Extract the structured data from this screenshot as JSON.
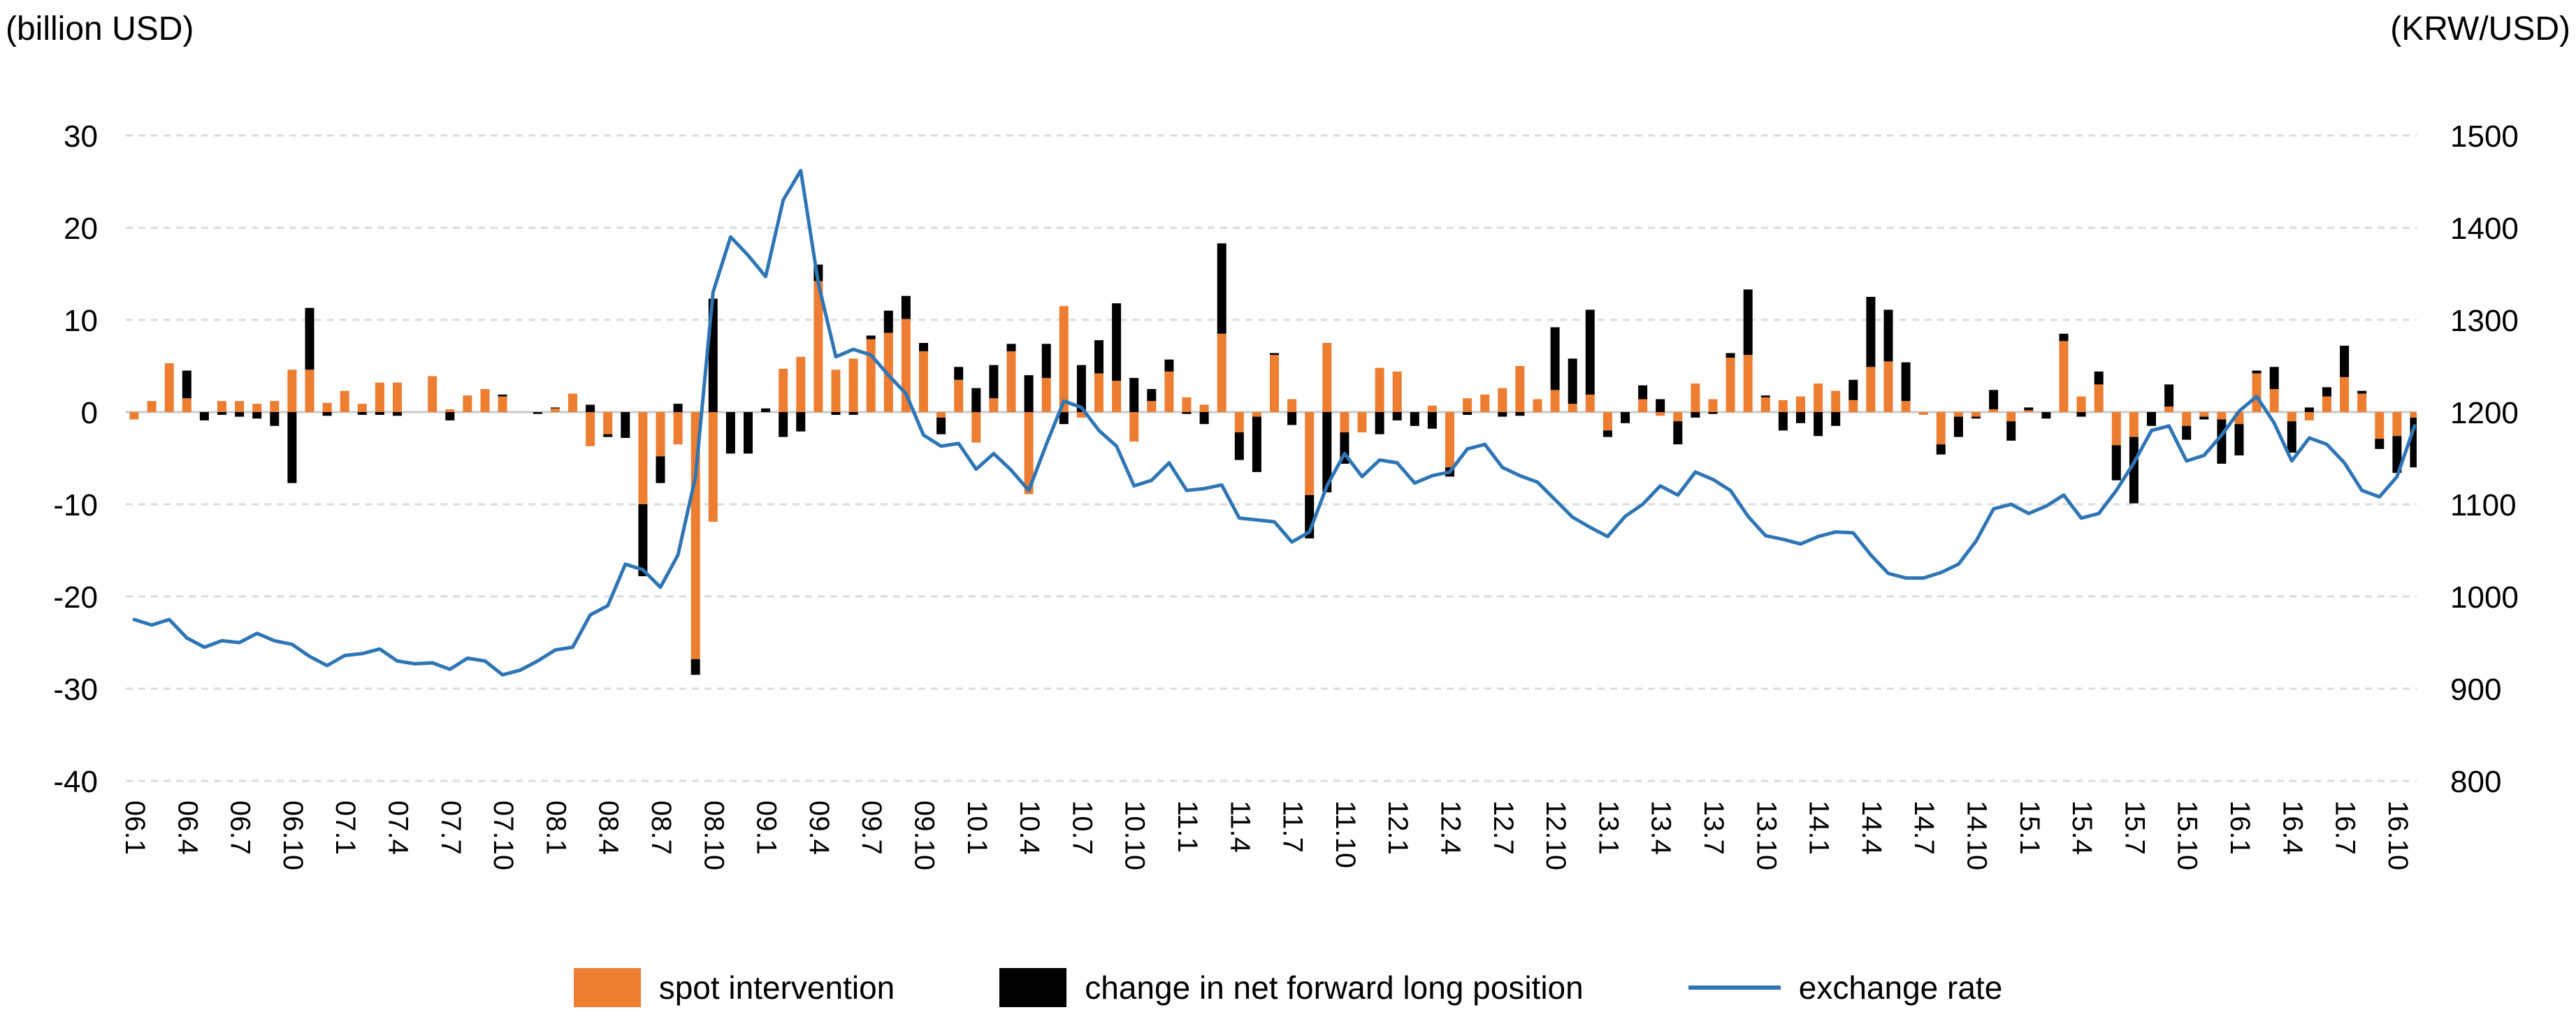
{
  "titles": {
    "left_axis": "(billion USD)",
    "right_axis": "(KRW/USD)"
  },
  "legend": {
    "items": [
      {
        "label": "spot intervention",
        "color": "#ED7D31",
        "type": "box"
      },
      {
        "label": "change in net forward long position",
        "color": "#000000",
        "type": "box"
      },
      {
        "label": "exchange rate",
        "color": "#2E75B6",
        "type": "line"
      }
    ]
  },
  "colors": {
    "spot_bar": "#ED7D31",
    "forward_bar": "#000000",
    "exchange_line": "#2E75B6",
    "gridline": "#DBDBDB",
    "zero_line": "#C9C9C9",
    "text": "#000000"
  },
  "chart_data": {
    "type": "bar",
    "subtype": "stacked bars with overlay line, dual axis",
    "x": [
      "06.1",
      "06.2",
      "06.3",
      "06.4",
      "06.5",
      "06.6",
      "06.7",
      "06.8",
      "06.9",
      "06.10",
      "06.11",
      "06.12",
      "07.1",
      "07.2",
      "07.3",
      "07.4",
      "07.5",
      "07.6",
      "07.7",
      "07.8",
      "07.9",
      "07.10",
      "07.11",
      "07.12",
      "08.1",
      "08.2",
      "08.3",
      "08.4",
      "08.5",
      "08.6",
      "08.7",
      "08.8",
      "08.9",
      "08.10",
      "08.11",
      "08.12",
      "09.1",
      "09.2",
      "09.3",
      "09.4",
      "09.5",
      "09.6",
      "09.7",
      "09.8",
      "09.9",
      "09.10",
      "09.11",
      "09.12",
      "10.1",
      "10.2",
      "10.3",
      "10.4",
      "10.5",
      "10.6",
      "10.7",
      "10.8",
      "10.9",
      "10.10",
      "10.11",
      "10.12",
      "11.1",
      "11.2",
      "11.3",
      "11.4",
      "11.5",
      "11.6",
      "11.7",
      "11.8",
      "11.9",
      "11.10",
      "11.11",
      "11.12",
      "12.1",
      "12.2",
      "12.3",
      "12.4",
      "12.5",
      "12.6",
      "12.7",
      "12.8",
      "12.9",
      "12.10",
      "12.11",
      "12.12",
      "13.1",
      "13.2",
      "13.3",
      "13.4",
      "13.5",
      "13.6",
      "13.7",
      "13.8",
      "13.9",
      "13.10",
      "13.11",
      "13.12",
      "14.1",
      "14.2",
      "14.3",
      "14.4",
      "14.5",
      "14.6",
      "14.7",
      "14.8",
      "14.9",
      "14.10",
      "14.11",
      "14.12",
      "15.1",
      "15.2",
      "15.3",
      "15.4",
      "15.5",
      "15.6",
      "15.7",
      "15.8",
      "15.9",
      "15.10",
      "15.11",
      "15.12",
      "16.1",
      "16.2",
      "16.3",
      "16.4",
      "16.5",
      "16.6",
      "16.7",
      "16.8",
      "16.9",
      "16.10",
      "16.11"
    ],
    "x_tick_labels": [
      "06.1",
      "06.4",
      "06.7",
      "06.10",
      "07.1",
      "07.4",
      "07.7",
      "07.10",
      "08.1",
      "08.4",
      "08.7",
      "08.10",
      "09.1",
      "09.4",
      "09.7",
      "09.10",
      "10.1",
      "10.4",
      "10.7",
      "10.10",
      "11.1",
      "11.4",
      "11.7",
      "11.10",
      "12.1",
      "12.4",
      "12.7",
      "12.10",
      "13.1",
      "13.4",
      "13.7",
      "13.10",
      "14.1",
      "14.4",
      "14.7",
      "14.10",
      "15.1",
      "15.4",
      "15.7",
      "15.10",
      "16.1",
      "16.4",
      "16.7",
      "16.10"
    ],
    "series": [
      {
        "name": "spot intervention",
        "type": "bar",
        "axis": "left",
        "color": "#ED7D31",
        "values": [
          -0.8,
          1.2,
          5.3,
          1.5,
          0,
          1.2,
          1.2,
          0.9,
          1.2,
          4.6,
          4.6,
          1.0,
          2.3,
          0.9,
          3.2,
          3.2,
          0,
          3.9,
          0.3,
          1.8,
          2.5,
          1.7,
          0,
          0,
          0.4,
          2.0,
          -3.7,
          -2.4,
          0,
          -10.0,
          -4.8,
          -3.5,
          -26.8,
          -11.9,
          0,
          0,
          0,
          4.7,
          6.0,
          14.2,
          4.6,
          5.8,
          7.9,
          8.6,
          10.1,
          6.6,
          -0.6,
          3.5,
          -3.3,
          1.5,
          6.6,
          -8.9,
          3.7,
          11.5,
          -0.6,
          4.2,
          3.4,
          -3.2,
          1.2,
          4.4,
          1.6,
          0.8,
          8.5,
          -2.2,
          -0.5,
          6.2,
          1.4,
          -9.0,
          7.5,
          -2.2,
          -2.2,
          4.8,
          4.4,
          0,
          0.7,
          -6.0,
          1.5,
          1.9,
          2.6,
          5.0,
          1.4,
          2.4,
          0.9,
          1.9,
          -2.0,
          0,
          1.4,
          -0.4,
          -1.0,
          3.1,
          1.4,
          5.9,
          6.2,
          1.6,
          1.3,
          1.7,
          3.1,
          2.3,
          1.3,
          4.9,
          5.5,
          1.2,
          -0.3,
          -3.5,
          -0.5,
          -0.5,
          0.3,
          -1.0,
          0.2,
          0,
          7.7,
          1.7,
          3.0,
          -3.6,
          -2.7,
          0,
          0.6,
          -1.5,
          -0.5,
          -0.8,
          -1.3,
          4.2,
          2.5,
          -1.0,
          -0.9,
          1.7,
          3.8,
          2.0,
          -2.9,
          -2.6,
          -0.6
        ]
      },
      {
        "name": "change in net forward long position",
        "type": "bar",
        "axis": "left",
        "color": "#000000",
        "values": [
          0,
          0,
          0,
          3.0,
          -0.9,
          -0.3,
          -0.5,
          -0.7,
          -1.5,
          -7.7,
          6.7,
          -0.4,
          0,
          -0.3,
          -0.3,
          -0.4,
          0,
          0,
          -0.9,
          0,
          0,
          0.2,
          0,
          -0.2,
          0.1,
          0,
          0.8,
          -0.3,
          -2.8,
          -7.8,
          -2.9,
          0.9,
          -1.7,
          12.3,
          -4.5,
          -4.5,
          0.4,
          -2.7,
          -2.1,
          1.8,
          -0.3,
          -0.3,
          0.4,
          2.4,
          2.5,
          0.9,
          -1.8,
          1.4,
          2.6,
          3.6,
          0.8,
          4.0,
          3.7,
          -1.3,
          5.1,
          3.6,
          8.4,
          3.7,
          1.3,
          1.3,
          -0.2,
          -1.3,
          9.8,
          -3.0,
          -6.0,
          0.2,
          -1.4,
          -4.7,
          -8.7,
          -3.4,
          0,
          -2.4,
          -0.9,
          -1.5,
          -1.8,
          -1.0,
          -0.3,
          0,
          -0.5,
          -0.4,
          0,
          6.8,
          4.9,
          9.2,
          -0.7,
          -1.2,
          1.5,
          1.4,
          -2.5,
          -0.6,
          -0.2,
          0.5,
          7.1,
          0.2,
          -2.0,
          -1.2,
          -2.6,
          -1.5,
          2.2,
          7.6,
          5.6,
          4.2,
          0,
          -1.1,
          -2.2,
          -0.2,
          2.1,
          -2.1,
          0.3,
          -0.7,
          0.8,
          -0.5,
          1.4,
          -3.8,
          -7.2,
          -1.5,
          2.4,
          -1.5,
          -0.3,
          -4.8,
          -3.4,
          0.3,
          2.4,
          -3.4,
          0.5,
          1.0,
          3.4,
          0.3,
          -1.1,
          -4.0,
          -5.4
        ]
      },
      {
        "name": "exchange rate",
        "type": "line",
        "axis": "right",
        "color": "#2E75B6",
        "values": [
          975,
          969,
          975,
          955,
          945,
          952,
          950,
          960,
          952,
          948,
          935,
          925,
          936,
          938,
          943,
          930,
          927,
          928,
          921,
          933,
          930,
          915,
          920,
          930,
          942,
          945,
          980,
          990,
          1035,
          1029,
          1010,
          1045,
          1130,
          1330,
          1390,
          1370,
          1347,
          1430,
          1462,
          1340,
          1260,
          1268,
          1262,
          1240,
          1220,
          1175,
          1163,
          1166,
          1138,
          1155,
          1137,
          1115,
          1165,
          1212,
          1205,
          1180,
          1163,
          1120,
          1126,
          1145,
          1115,
          1117,
          1121,
          1085,
          1083,
          1081,
          1059,
          1070,
          1120,
          1155,
          1130,
          1148,
          1145,
          1123,
          1131,
          1135,
          1160,
          1165,
          1140,
          1131,
          1124,
          1105,
          1086,
          1075,
          1065,
          1087,
          1100,
          1120,
          1110,
          1135,
          1127,
          1115,
          1087,
          1066,
          1062,
          1057,
          1065,
          1070,
          1069,
          1045,
          1025,
          1020,
          1020,
          1026,
          1035,
          1060,
          1095,
          1100,
          1090,
          1098,
          1110,
          1085,
          1090,
          1115,
          1145,
          1180,
          1185,
          1147,
          1153,
          1175,
          1201,
          1217,
          1188,
          1147,
          1172,
          1165,
          1145,
          1115,
          1108,
          1130,
          1185
        ]
      }
    ],
    "left_axis": {
      "label": "(billion USD)",
      "min": -40,
      "max": 30,
      "ticks": [
        30,
        20,
        10,
        0,
        -10,
        -20,
        -30,
        -40
      ]
    },
    "right_axis": {
      "label": "(KRW/USD)",
      "min": 800,
      "max": 1500,
      "ticks": [
        1500,
        1400,
        1300,
        1200,
        1100,
        1000,
        900,
        800
      ]
    },
    "grid": "horizontal dashed light gray",
    "legend_position": "bottom center"
  }
}
